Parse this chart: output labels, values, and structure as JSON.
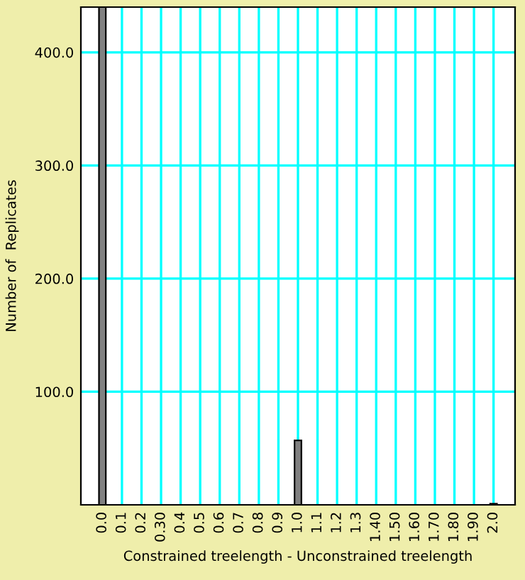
{
  "chart_data": {
    "type": "bar",
    "xlabel": "Constrained treelength - Unconstrained treelength",
    "ylabel": "Number of  Replicates",
    "categories": [
      "0.0",
      "0.1",
      "0.2",
      "0.30",
      "0.4",
      "0.5",
      "0.6",
      "0.7",
      "0.8",
      "0.9",
      "1.0",
      "1.1",
      "1.2",
      "1.3",
      "1.40",
      "1.50",
      "1.60",
      "1.70",
      "1.80",
      "1.90",
      "2.0"
    ],
    "series": [
      {
        "color": "#808080",
        "values": [
          440,
          0,
          0,
          0,
          0,
          0,
          0,
          0,
          0,
          0,
          57,
          0,
          0,
          0,
          0,
          0,
          0,
          0,
          0,
          0,
          1
        ]
      }
    ],
    "ylim": [
      0,
      440
    ],
    "yticks": [
      {
        "value": 100,
        "label": "100.0"
      },
      {
        "value": 200,
        "label": "200.0"
      },
      {
        "value": 300,
        "label": "300.0"
      },
      {
        "value": 400,
        "label": "400.0"
      }
    ],
    "grid": true
  }
}
